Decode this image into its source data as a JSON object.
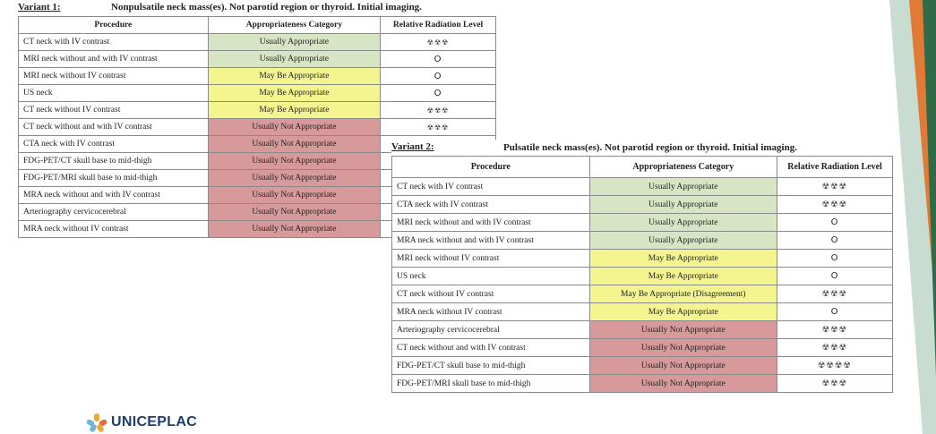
{
  "variant1": {
    "label": "Variant 1:",
    "title": "Nonpulsatile neck mass(es). Not parotid region or thyroid. Initial imaging.",
    "headers": [
      "Procedure",
      "Appropriateness Category",
      "Relative Radiation Level"
    ],
    "rows": [
      {
        "procedure": "CT neck with IV contrast",
        "category": "Usually Appropriate",
        "color": "green",
        "radiation": "☢☢☢"
      },
      {
        "procedure": "MRI neck without and with IV contrast",
        "category": "Usually Appropriate",
        "color": "green",
        "radiation": "O"
      },
      {
        "procedure": "MRI neck without IV contrast",
        "category": "May Be Appropriate",
        "color": "yellow",
        "radiation": "O"
      },
      {
        "procedure": "US neck",
        "category": "May Be Appropriate",
        "color": "yellow",
        "radiation": "O"
      },
      {
        "procedure": "CT neck without IV contrast",
        "category": "May Be Appropriate",
        "color": "yellow",
        "radiation": "☢☢☢"
      },
      {
        "procedure": "CT neck without and with IV contrast",
        "category": "Usually Not Appropriate",
        "color": "red",
        "radiation": "☢☢☢"
      },
      {
        "procedure": "CTA neck with IV contrast",
        "category": "Usually Not Appropriate",
        "color": "red",
        "radiation": ""
      },
      {
        "procedure": "FDG-PET/CT skull base to mid-thigh",
        "category": "Usually Not Appropriate",
        "color": "red",
        "radiation": ""
      },
      {
        "procedure": "FDG-PET/MRI skull base to mid-thigh",
        "category": "Usually Not Appropriate",
        "color": "red",
        "radiation": ""
      },
      {
        "procedure": "MRA neck without and with IV contrast",
        "category": "Usually Not Appropriate",
        "color": "red",
        "radiation": ""
      },
      {
        "procedure": "Arteriography cervicocerebral",
        "category": "Usually Not Appropriate",
        "color": "red",
        "radiation": ""
      },
      {
        "procedure": "MRA neck without IV contrast",
        "category": "Usually Not Appropriate",
        "color": "red",
        "radiation": ""
      }
    ]
  },
  "variant2": {
    "label": "Variant 2:",
    "title": "Pulsatile neck mass(es). Not parotid region or thyroid. Initial imaging.",
    "headers": [
      "Procedure",
      "Appropriateness Category",
      "Relative Radiation Level"
    ],
    "rows": [
      {
        "procedure": "CT neck with IV contrast",
        "category": "Usually Appropriate",
        "color": "green",
        "radiation": "☢☢☢"
      },
      {
        "procedure": "CTA neck with IV contrast",
        "category": "Usually Appropriate",
        "color": "green",
        "radiation": "☢☢☢"
      },
      {
        "procedure": "MRI neck without and with IV contrast",
        "category": "Usually Appropriate",
        "color": "green",
        "radiation": "O"
      },
      {
        "procedure": "MRA neck without and with IV contrast",
        "category": "Usually Appropriate",
        "color": "green",
        "radiation": "O"
      },
      {
        "procedure": "MRI neck without IV contrast",
        "category": "May Be Appropriate",
        "color": "yellow",
        "radiation": "O"
      },
      {
        "procedure": "US neck",
        "category": "May Be Appropriate",
        "color": "yellow",
        "radiation": "O"
      },
      {
        "procedure": "CT neck without IV contrast",
        "category": "May Be Appropriate (Disagreement)",
        "color": "yellow",
        "radiation": "☢☢☢"
      },
      {
        "procedure": "MRA neck without IV contrast",
        "category": "May Be Appropriate",
        "color": "yellow",
        "radiation": "O"
      },
      {
        "procedure": "Arteriography cervicocerebral",
        "category": "Usually Not Appropriate",
        "color": "red",
        "radiation": "☢☢☢"
      },
      {
        "procedure": "CT neck without and with IV contrast",
        "category": "Usually Not Appropriate",
        "color": "red",
        "radiation": "☢☢☢"
      },
      {
        "procedure": "FDG-PET/CT skull base to mid-thigh",
        "category": "Usually Not Appropriate",
        "color": "red",
        "radiation": "☢☢☢☢"
      },
      {
        "procedure": "FDG-PET/MRI skull base to mid-thigh",
        "category": "Usually Not Appropriate",
        "color": "red",
        "radiation": "☢☢☢"
      }
    ]
  },
  "logo": {
    "name": "UNICEPLAC",
    "colors": [
      "#f2a33a",
      "#6fb7d8",
      "#1d3f6e",
      "#e06b3a"
    ]
  },
  "decoration": {
    "colors": [
      "#c9dcd1",
      "#2f6b47",
      "#e07a35",
      "#a6c9b7"
    ]
  }
}
